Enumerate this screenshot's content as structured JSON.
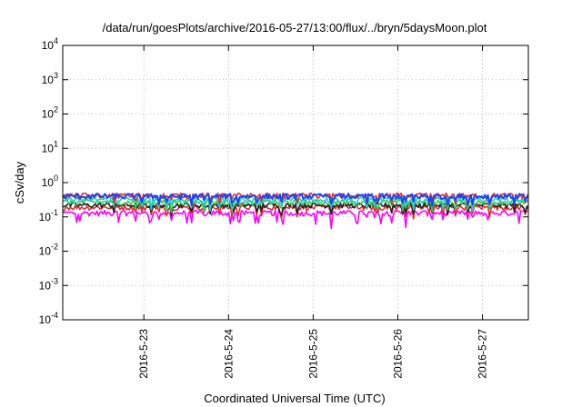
{
  "chart_data": {
    "type": "line",
    "title": "/data/run/goesPlots/archive/2016-05-27/13:00/flux/../bryn/5daysMoon.plot",
    "xlabel": "Coordinated Universal Time (UTC)",
    "ylabel": "cSv/day",
    "y_scale": "log",
    "ylim": [
      0.0001,
      10000
    ],
    "xlim": [
      "2016-05-22 01:00",
      "2016-05-27 13:00"
    ],
    "grid": true,
    "legend": "none",
    "y_ticks": [
      {
        "value": 0.0001,
        "base": "10",
        "exp": "-4"
      },
      {
        "value": 0.001,
        "base": "10",
        "exp": "-3"
      },
      {
        "value": 0.01,
        "base": "10",
        "exp": "-2"
      },
      {
        "value": 0.1,
        "base": "10",
        "exp": "-1"
      },
      {
        "value": 1,
        "base": "10",
        "exp": "0"
      },
      {
        "value": 10,
        "base": "10",
        "exp": "1"
      },
      {
        "value": 100,
        "base": "10",
        "exp": "2"
      },
      {
        "value": 1000,
        "base": "10",
        "exp": "3"
      },
      {
        "value": 10000,
        "base": "10",
        "exp": "4"
      }
    ],
    "x_ticks": [
      {
        "value": "2016-05-23 00:00",
        "label": "2016-5-23"
      },
      {
        "value": "2016-05-24 00:00",
        "label": "2016-5-24"
      },
      {
        "value": "2016-05-25 00:00",
        "label": "2016-5-25"
      },
      {
        "value": "2016-05-26 00:00",
        "label": "2016-5-26"
      },
      {
        "value": "2016-05-27 00:00",
        "label": "2016-5-27"
      }
    ],
    "series": [
      {
        "color": "#ff00ff",
        "level": 0.13
      },
      {
        "color": "#e03030",
        "level": 0.19
      },
      {
        "color": "#202020",
        "level": 0.22
      },
      {
        "color": "#33cc55",
        "level": 0.27
      },
      {
        "color": "#22cccc",
        "level": 0.32
      },
      {
        "color": "#e03030",
        "level": 0.42
      },
      {
        "color": "#2244ee",
        "level": 0.4
      }
    ]
  }
}
